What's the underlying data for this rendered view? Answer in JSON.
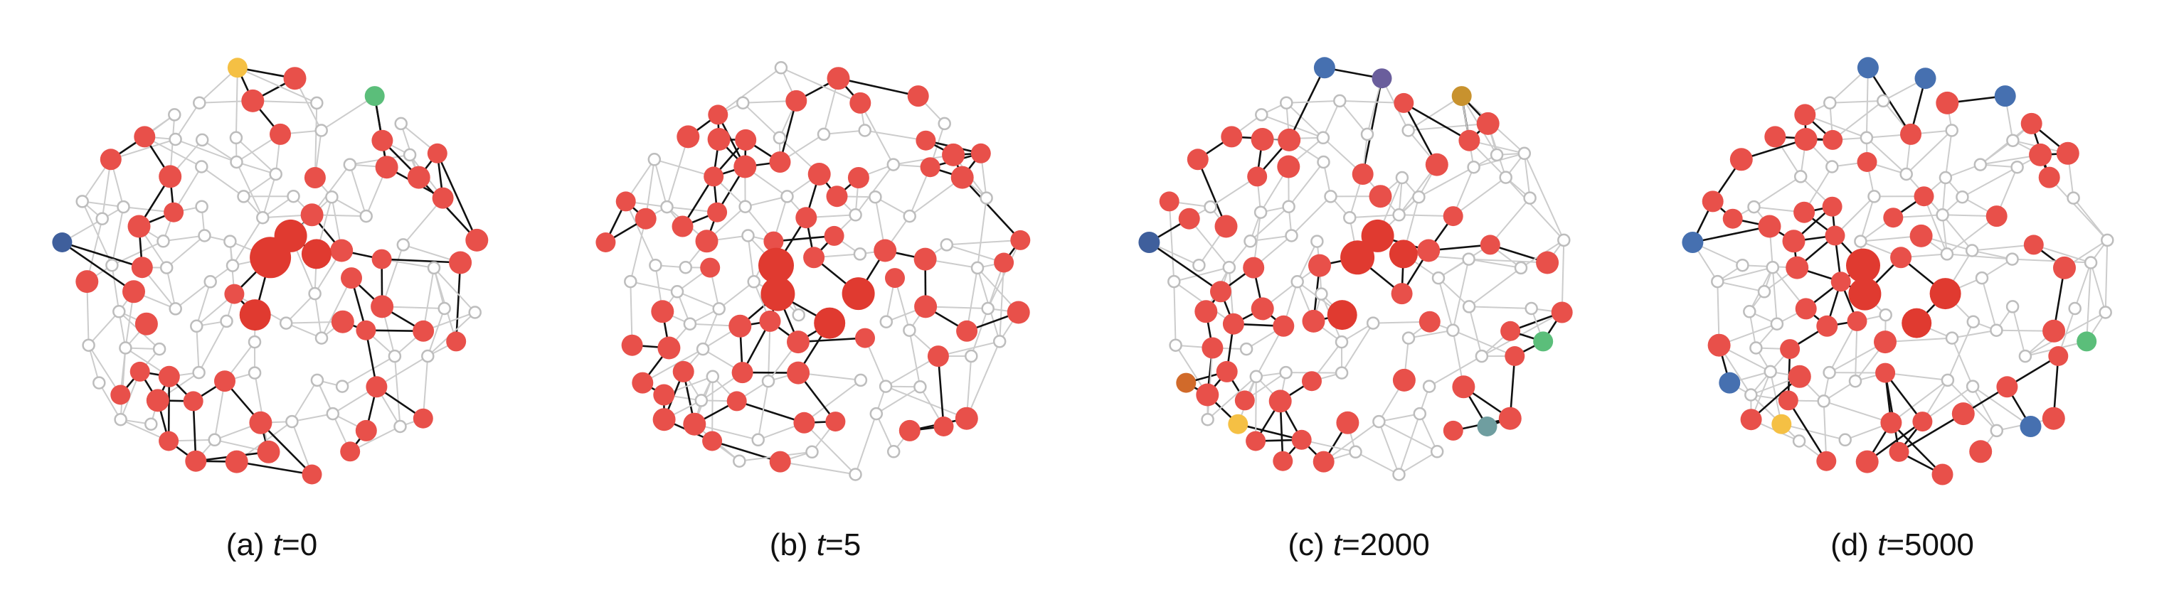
{
  "colors": {
    "active_node": "#E8504A",
    "hub_node": "#E03A30",
    "inactive_node_stroke": "#BDBDBD",
    "active_edge": "#111111",
    "inactive_edge": "#CCCCCC",
    "blue": "#4670B0",
    "navy": "#3F5F9C",
    "yellow": "#F5C044",
    "green": "#5BBE7A",
    "gold": "#C8922E",
    "orange": "#D16A2A",
    "teal": "#6F9EA0",
    "purple": "#6A5E9C"
  },
  "panels": [
    {
      "label": "(a) ",
      "var": "t",
      "value": "=0"
    },
    {
      "label": "(b) ",
      "var": "t",
      "value": "=5"
    },
    {
      "label": "(c) ",
      "var": "t",
      "value": "=2000"
    },
    {
      "label": "(d) ",
      "var": "t",
      "value": "=5000"
    }
  ]
}
